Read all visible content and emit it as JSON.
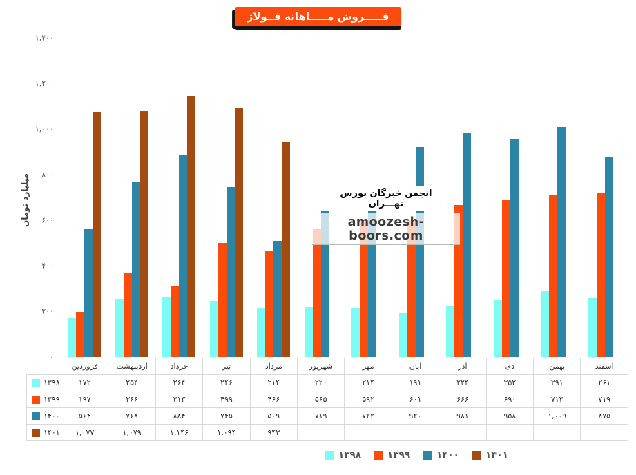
{
  "title": "فـــــروش مـــــاهانه فــولاژ",
  "watermark": {
    "line1": "انجمن خبرگان بورس تهـــران",
    "line2": "amoozesh-boors.com"
  },
  "colors": {
    "title_background": "#FB4B0D",
    "series_1398": "#7DFBF5",
    "series_1399": "#FC4C0C",
    "series_1400": "#2C85A4",
    "series_1401": "#A34B10",
    "table_border": "#d9d9d9",
    "tick_text": "#595959",
    "legend_text": "#555555"
  },
  "chart_data": {
    "type": "bar",
    "title": "فـــــروش مـــــاهانه فــولاژ",
    "xlabel": "",
    "ylabel": "میلیارد تومان",
    "ylim": [
      0,
      1400
    ],
    "ytick_step": 200,
    "ytick_labels": [
      "۰",
      "۲۰۰",
      "۴۰۰",
      "۶۰۰",
      "۸۰۰",
      "۱,۰۰۰",
      "۱,۲۰۰",
      "۱,۴۰۰"
    ],
    "grid": false,
    "legend_position": "bottom",
    "categories": [
      "فروردین",
      "اردیبهشت",
      "خرداد",
      "تیر",
      "مرداد",
      "شهریور",
      "مهر",
      "آبان",
      "آذر",
      "دی",
      "بهمن",
      "اسفند"
    ],
    "series": [
      {
        "name": "۱۳۹۸",
        "color": "#7DFBF5",
        "values": [
          172,
          254,
          264,
          246,
          214,
          220,
          214,
          191,
          224,
          252,
          291,
          261
        ],
        "labels": [
          "۱۷۲",
          "۲۵۴",
          "۲۶۴",
          "۲۴۶",
          "۲۱۴",
          "۲۲۰",
          "۲۱۴",
          "۱۹۱",
          "۲۲۴",
          "۲۵۲",
          "۲۹۱",
          "۲۶۱"
        ]
      },
      {
        "name": "۱۳۹۹",
        "color": "#FC4C0C",
        "values": [
          197,
          366,
          313,
          499,
          466,
          565,
          592,
          601,
          666,
          690,
          713,
          719
        ],
        "labels": [
          "۱۹۷",
          "۳۶۶",
          "۳۱۳",
          "۴۹۹",
          "۴۶۶",
          "۵۶۵",
          "۵۹۲",
          "۶۰۱",
          "۶۶۶",
          "۶۹۰",
          "۷۱۳",
          "۷۱۹"
        ]
      },
      {
        "name": "۱۴۰۰",
        "color": "#2C85A4",
        "values": [
          564,
          768,
          884,
          745,
          509,
          719,
          722,
          920,
          981,
          958,
          1009,
          875
        ],
        "labels": [
          "۵۶۴",
          "۷۶۸",
          "۸۸۴",
          "۷۴۵",
          "۵۰۹",
          "۷۱۹",
          "۷۲۲",
          "۹۲۰",
          "۹۸۱",
          "۹۵۸",
          "۱,۰۰۹",
          "۸۷۵"
        ]
      },
      {
        "name": "۱۴۰۱",
        "color": "#A34B10",
        "values": [
          1077,
          1079,
          1146,
          1094,
          943,
          null,
          null,
          null,
          null,
          null,
          null,
          null
        ],
        "labels": [
          "۱,۰۷۷",
          "۱,۰۷۹",
          "۱,۱۴۶",
          "۱,۰۹۴",
          "۹۴۳",
          "",
          "",
          "",
          "",
          "",
          "",
          ""
        ]
      }
    ]
  }
}
